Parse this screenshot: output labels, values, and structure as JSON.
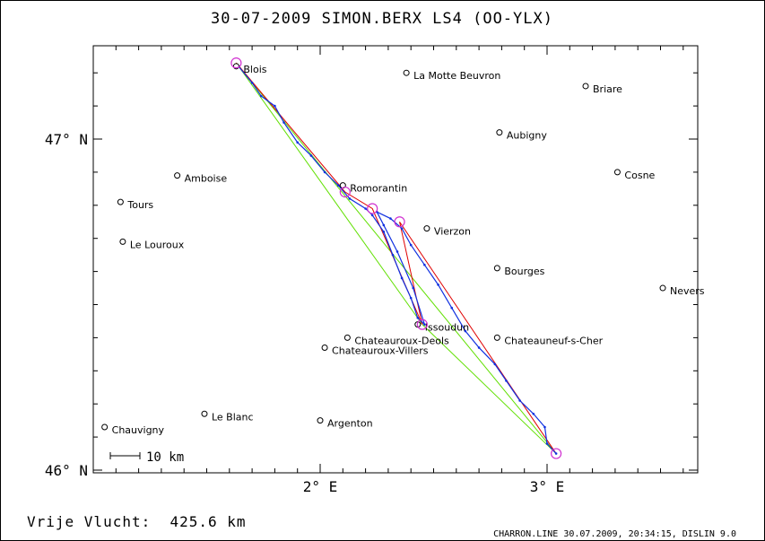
{
  "title": "30-07-2009    SIMON.BERX    LS4 (OO-YLX)",
  "axes": {
    "lat_labels": [
      "47° N",
      "46° N"
    ],
    "lon_labels": [
      "2° E",
      "3° E"
    ]
  },
  "scale_bar_label": "10 km",
  "footer_distance": "Vrije Vlucht:  425.6 km",
  "credit": "CHARRON.LINE 30.07.2009, 20:34:15, DISLIN 9.0",
  "colors": {
    "track": "#1030e0",
    "task_line": "#60e000",
    "optimized_line": "#e00000",
    "turnpoint": "#d030d0"
  },
  "towns": [
    {
      "name": "Blois",
      "lon": 1.63,
      "lat": 47.22
    },
    {
      "name": "La Motte Beuvron",
      "lon": 2.38,
      "lat": 47.2
    },
    {
      "name": "Briare",
      "lon": 3.17,
      "lat": 47.16
    },
    {
      "name": "Aubigny",
      "lon": 2.79,
      "lat": 47.02
    },
    {
      "name": "Cosne",
      "lon": 3.31,
      "lat": 46.9
    },
    {
      "name": "Amboise",
      "lon": 1.37,
      "lat": 46.89
    },
    {
      "name": "Romorantin",
      "lon": 2.1,
      "lat": 46.86
    },
    {
      "name": "Tours",
      "lon": 1.12,
      "lat": 46.81
    },
    {
      "name": "Vierzon",
      "lon": 2.47,
      "lat": 46.73
    },
    {
      "name": "Le Louroux",
      "lon": 1.13,
      "lat": 46.69
    },
    {
      "name": "Bourges",
      "lon": 2.78,
      "lat": 46.61
    },
    {
      "name": "Nevers",
      "lon": 3.51,
      "lat": 46.55
    },
    {
      "name": "Issoudun",
      "lon": 2.43,
      "lat": 46.44
    },
    {
      "name": "Chateauroux-Deols",
      "lon": 2.12,
      "lat": 46.4
    },
    {
      "name": "Chateauneuf-s-Cher",
      "lon": 2.78,
      "lat": 46.4
    },
    {
      "name": "Chateauroux-Villers",
      "lon": 2.02,
      "lat": 46.37
    },
    {
      "name": "Le Blanc",
      "lon": 1.49,
      "lat": 46.17
    },
    {
      "name": "Argenton",
      "lon": 2.0,
      "lat": 46.15
    },
    {
      "name": "Chauvigny",
      "lon": 1.05,
      "lat": 46.13
    }
  ],
  "turnpoints": [
    {
      "lon": 1.63,
      "lat": 47.23
    },
    {
      "lon": 2.11,
      "lat": 46.84
    },
    {
      "lon": 2.23,
      "lat": 46.79
    },
    {
      "lon": 2.35,
      "lat": 46.75
    },
    {
      "lon": 2.45,
      "lat": 46.44
    },
    {
      "lon": 3.04,
      "lat": 46.05
    }
  ],
  "task_lines": [
    [
      {
        "lon": 1.63,
        "lat": 47.23
      },
      {
        "lon": 2.45,
        "lat": 46.44
      }
    ],
    [
      {
        "lon": 1.63,
        "lat": 47.23
      },
      {
        "lon": 3.04,
        "lat": 46.05
      }
    ],
    [
      {
        "lon": 2.45,
        "lat": 46.44
      },
      {
        "lon": 3.04,
        "lat": 46.05
      }
    ]
  ],
  "optimized_route": [
    {
      "lon": 1.63,
      "lat": 47.23
    },
    {
      "lon": 2.11,
      "lat": 46.84
    },
    {
      "lon": 2.23,
      "lat": 46.79
    },
    {
      "lon": 2.45,
      "lat": 46.44
    },
    {
      "lon": 2.35,
      "lat": 46.75
    },
    {
      "lon": 3.04,
      "lat": 46.05
    }
  ],
  "track": [
    {
      "lon": 1.64,
      "lat": 47.22
    },
    {
      "lon": 1.7,
      "lat": 47.17
    },
    {
      "lon": 1.74,
      "lat": 47.13
    },
    {
      "lon": 1.8,
      "lat": 47.1
    },
    {
      "lon": 1.84,
      "lat": 47.05
    },
    {
      "lon": 1.9,
      "lat": 46.99
    },
    {
      "lon": 1.96,
      "lat": 46.95
    },
    {
      "lon": 2.02,
      "lat": 46.9
    },
    {
      "lon": 2.08,
      "lat": 46.86
    },
    {
      "lon": 2.13,
      "lat": 46.82
    },
    {
      "lon": 2.2,
      "lat": 46.79
    },
    {
      "lon": 2.23,
      "lat": 46.77
    },
    {
      "lon": 2.28,
      "lat": 46.72
    },
    {
      "lon": 2.32,
      "lat": 46.65
    },
    {
      "lon": 2.36,
      "lat": 46.58
    },
    {
      "lon": 2.4,
      "lat": 46.52
    },
    {
      "lon": 2.43,
      "lat": 46.46
    },
    {
      "lon": 2.46,
      "lat": 46.44
    },
    {
      "lon": 2.41,
      "lat": 46.55
    },
    {
      "lon": 2.34,
      "lat": 46.66
    },
    {
      "lon": 2.28,
      "lat": 46.74
    },
    {
      "lon": 2.25,
      "lat": 46.78
    },
    {
      "lon": 2.31,
      "lat": 46.76
    },
    {
      "lon": 2.36,
      "lat": 46.73
    },
    {
      "lon": 2.4,
      "lat": 46.68
    },
    {
      "lon": 2.46,
      "lat": 46.62
    },
    {
      "lon": 2.52,
      "lat": 46.56
    },
    {
      "lon": 2.58,
      "lat": 46.49
    },
    {
      "lon": 2.64,
      "lat": 46.42
    },
    {
      "lon": 2.7,
      "lat": 46.37
    },
    {
      "lon": 2.77,
      "lat": 46.32
    },
    {
      "lon": 2.82,
      "lat": 46.27
    },
    {
      "lon": 2.88,
      "lat": 46.21
    },
    {
      "lon": 2.94,
      "lat": 46.17
    },
    {
      "lon": 2.99,
      "lat": 46.13
    },
    {
      "lon": 3.0,
      "lat": 46.08
    },
    {
      "lon": 3.04,
      "lat": 46.05
    }
  ]
}
